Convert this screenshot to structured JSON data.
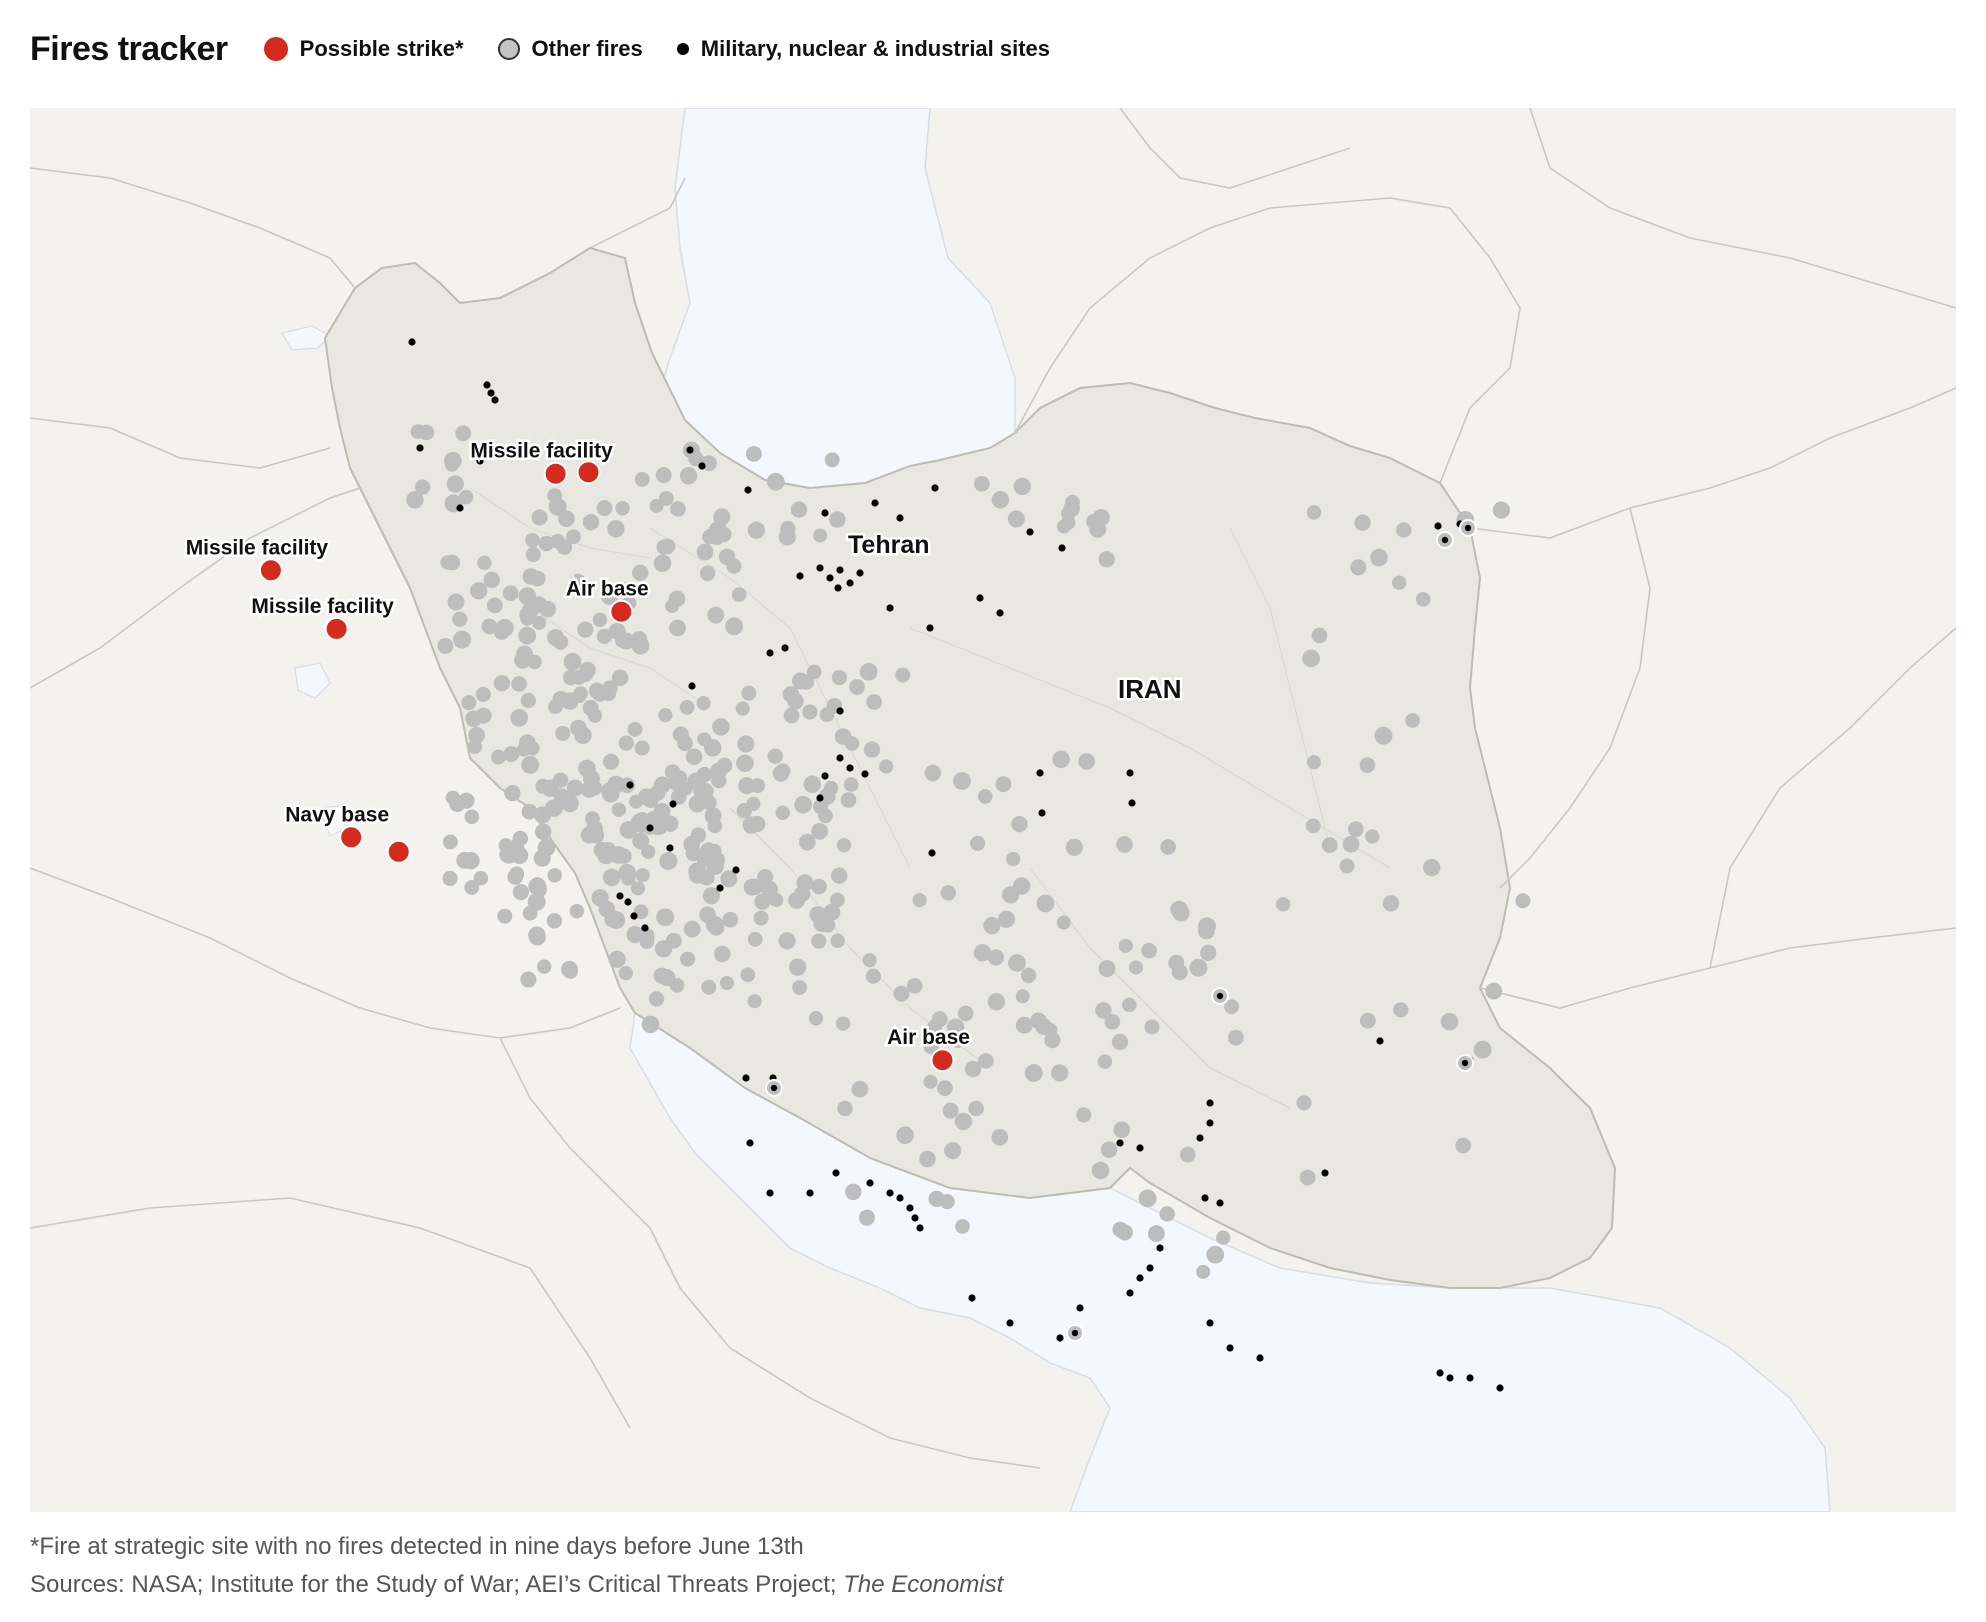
{
  "header": {
    "title": "Fires tracker",
    "legend": [
      {
        "label": "Possible strike*",
        "color": "#d52b1e"
      },
      {
        "label": "Other fires",
        "color": "#c4c4c4"
      },
      {
        "label": "Military, nuclear & industrial sites",
        "color": "#000000"
      }
    ]
  },
  "map": {
    "country_label": "IRAN",
    "city_label": "Tehran",
    "colors": {
      "land": "#f3f2ee",
      "iran": "#e8e7e1",
      "water": "#f4f8fc",
      "border": "#c9c8bf",
      "strike": "#d52b1e",
      "fire": "#bdbdbd",
      "site": "#000000"
    },
    "strikes": [
      {
        "label": "Missile facility",
        "lon": 51.0,
        "lat": 35.7
      },
      {
        "label": "",
        "lon": 51.45,
        "lat": 35.72
      },
      {
        "label": "Missile facility",
        "lon": 47.1,
        "lat": 34.3
      },
      {
        "label": "Missile facility",
        "lon": 48.0,
        "lat": 33.45
      },
      {
        "label": "Air base",
        "lon": 51.9,
        "lat": 33.7
      },
      {
        "label": "Navy base",
        "lon": 48.2,
        "lat": 30.43
      },
      {
        "label": "",
        "lon": 48.85,
        "lat": 30.22
      },
      {
        "label": "Air base",
        "lon": 56.3,
        "lat": 27.2
      }
    ]
  },
  "footer": {
    "note": "*Fire at strategic site with no fires detected in nine days before June 13th",
    "sources_prefix": "Sources: NASA; Institute for the Study of War; AEI’s Critical Threats Project; ",
    "sources_italic": "The Economist"
  }
}
